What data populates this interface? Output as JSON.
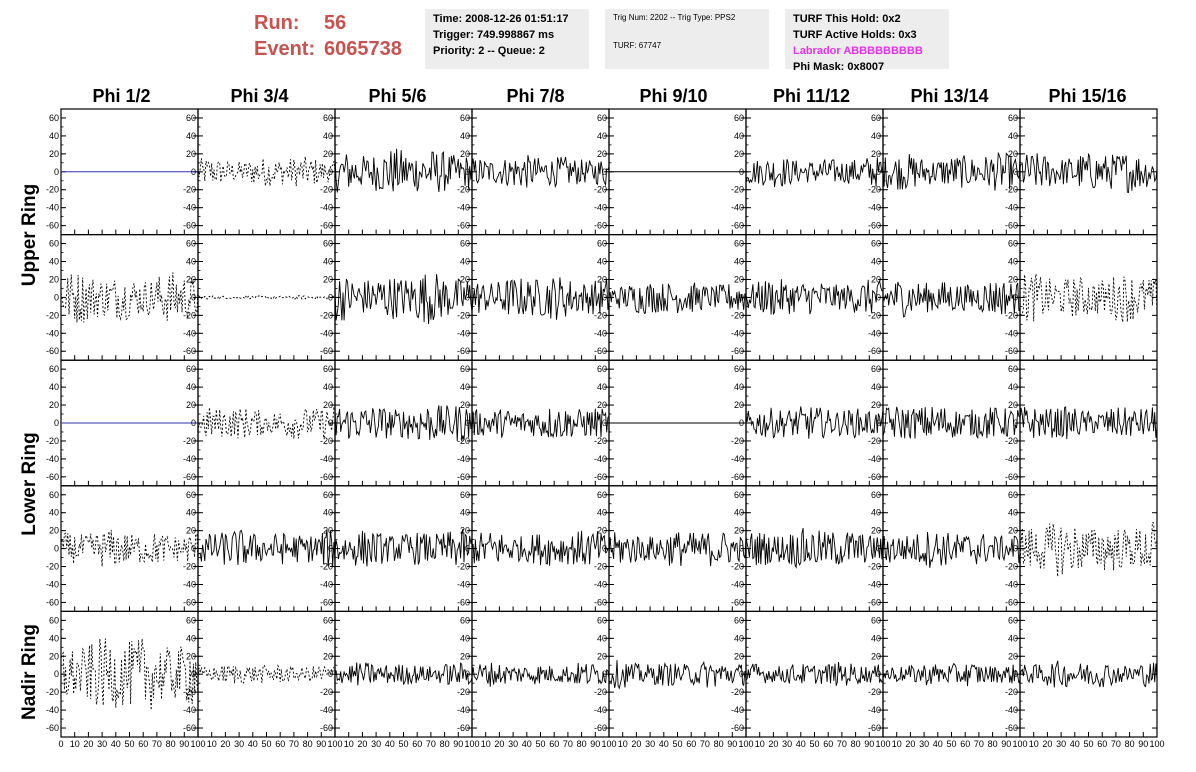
{
  "run": {
    "run_label": "Run:",
    "run_value": "56",
    "event_label": "Event:",
    "event_value": "6065738"
  },
  "time_box": {
    "time": "Time: 2008-12-26 01:51:17",
    "trigger": "Trigger: 749.998867 ms",
    "priority": "Priority: 2 -- Queue: 2"
  },
  "trig_box": {
    "trig": "Trig Num: 2202 -- Trig Type: PPS2",
    "turf": "TURF: 67747"
  },
  "turf_box": {
    "this_hold": "TURF This Hold: 0x2",
    "active_holds": "TURF Active Holds: 0x3",
    "labrador": "Labrador ABBBBBBBBB",
    "phi_mask": "Phi Mask: 0x8007"
  },
  "phi_sectors": [
    "Phi 1/2",
    "Phi 3/4",
    "Phi 5/6",
    "Phi 7/8",
    "Phi 9/10",
    "Phi 11/12",
    "Phi 13/14",
    "Phi 15/16"
  ],
  "ring_labels": {
    "upper": "Upper Ring",
    "lower": "Lower Ring",
    "nadir": "Nadir Ring"
  },
  "axes": {
    "y_ticks": [
      60,
      40,
      20,
      0,
      -20,
      -40,
      -60
    ],
    "y_range": [
      -70,
      70
    ],
    "x_ticks": [
      0,
      10,
      20,
      30,
      40,
      50,
      60,
      70,
      80,
      90,
      100
    ],
    "x_range": [
      0,
      100
    ]
  },
  "colors": {
    "run_text": "#c8524e",
    "info_bg": "#ededed",
    "labrador": "#e632e6",
    "flat_blue": "#3030b0"
  },
  "panels": [
    [
      "flat-blue",
      "dashed",
      "solid",
      "solid",
      "flat-black",
      "solid",
      "solid",
      "solid"
    ],
    [
      "dashed",
      "dashed-small",
      "solid",
      "solid",
      "solid",
      "solid",
      "solid",
      "dashed"
    ],
    [
      "flat-blue",
      "dashed",
      "solid",
      "solid",
      "flat-black",
      "solid",
      "solid",
      "solid"
    ],
    [
      "dashed",
      "solid",
      "solid",
      "solid",
      "solid",
      "solid",
      "solid",
      "dashed"
    ],
    [
      "dashed",
      "dashed",
      "solid",
      "solid",
      "solid",
      "solid",
      "solid",
      "solid"
    ]
  ],
  "panel_amplitude": [
    [
      0,
      18,
      28,
      20,
      0,
      18,
      22,
      24
    ],
    [
      30,
      2,
      30,
      26,
      20,
      22,
      22,
      28
    ],
    [
      0,
      20,
      24,
      20,
      0,
      20,
      22,
      20
    ],
    [
      22,
      22,
      22,
      22,
      22,
      24,
      22,
      32
    ],
    [
      44,
      12,
      14,
      14,
      16,
      14,
      14,
      16
    ]
  ]
}
